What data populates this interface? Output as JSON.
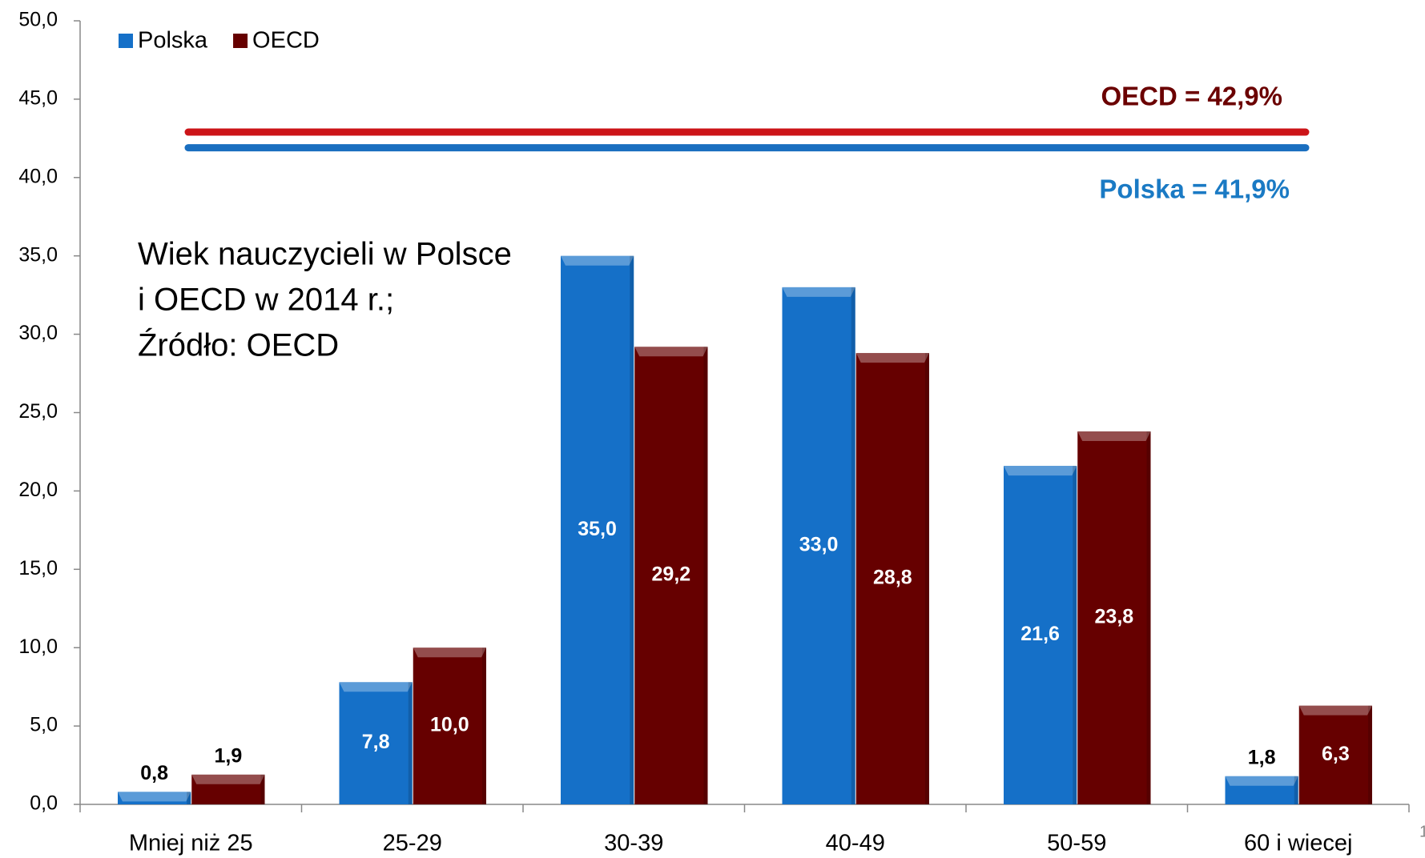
{
  "chart_data": {
    "type": "bar",
    "annotation": [
      "Wiek nauczycieli w Polsce",
      "i OECD w 2014 r.;",
      "Źródło: OECD"
    ],
    "categories": [
      "Mniej niż 25",
      "25-29",
      "30-39",
      "40-49",
      "50-59",
      "60 i wiecej"
    ],
    "series": [
      {
        "name": "Polska",
        "color": "#1570c8",
        "values": [
          0.8,
          7.8,
          35.0,
          33.0,
          21.6,
          1.8
        ],
        "value_labels": [
          "0,8",
          "7,8",
          "35,0",
          "33,0",
          "21,6",
          "1,8"
        ]
      },
      {
        "name": "OECD",
        "color": "#660000",
        "values": [
          1.9,
          10.0,
          29.2,
          28.8,
          23.8,
          6.3
        ],
        "value_labels": [
          "1,9",
          "10,0",
          "29,2",
          "28,8",
          "23,8",
          "6,3"
        ]
      }
    ],
    "reference_lines": [
      {
        "value": 42.9,
        "label": "OECD = 42,9%",
        "color": "#cc1418",
        "label_color": "#6b0000"
      },
      {
        "value": 41.9,
        "label": "Polska = 41,9%",
        "color": "#1a6fc0",
        "label_color": "#1a7ac4"
      }
    ],
    "ylim": [
      0,
      50
    ],
    "yticks": [
      {
        "value": 0,
        "label": "0,0"
      },
      {
        "value": 5,
        "label": "5,0"
      },
      {
        "value": 10,
        "label": "10,0"
      },
      {
        "value": 15,
        "label": "15,0"
      },
      {
        "value": 20,
        "label": "20,0"
      },
      {
        "value": 25,
        "label": "25,0"
      },
      {
        "value": 30,
        "label": "30,0"
      },
      {
        "value": 35,
        "label": "35,0"
      },
      {
        "value": 40,
        "label": "40,0"
      },
      {
        "value": 45,
        "label": "45,0"
      },
      {
        "value": 50,
        "label": "50,0"
      }
    ],
    "legend": "top-left",
    "page_number": "1"
  }
}
